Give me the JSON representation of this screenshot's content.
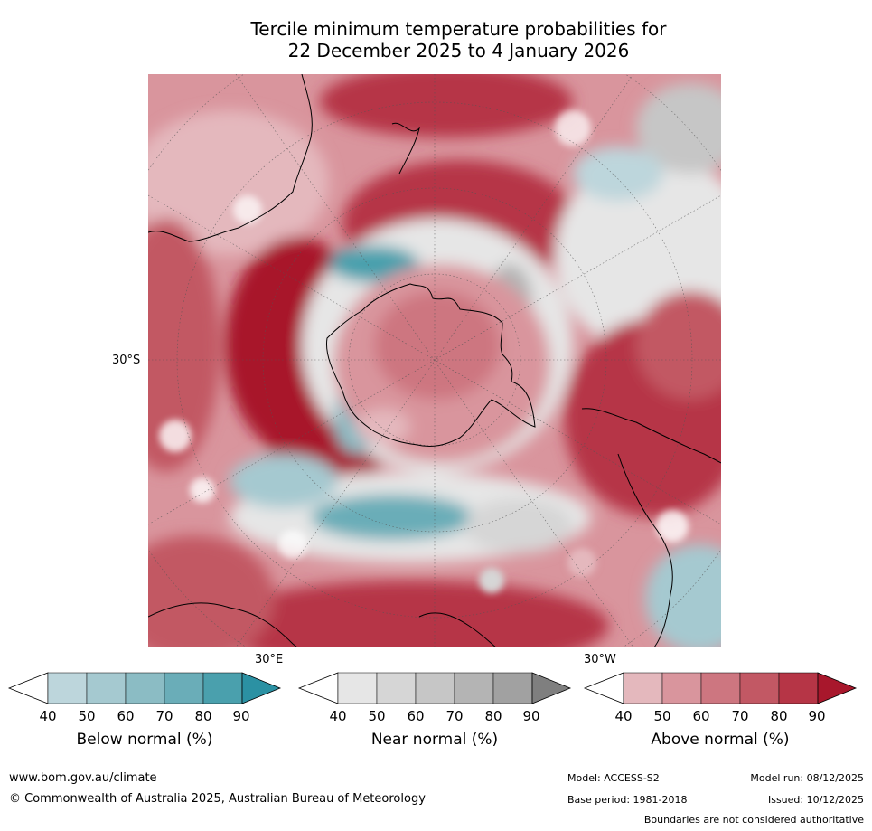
{
  "title": {
    "line1": "Tercile minimum temperature probabilities for",
    "line2": "22 December 2025 to 4 January 2026"
  },
  "map": {
    "lat_label": "30°S",
    "lon_label_east": "30°E",
    "lon_label_west": "30°W"
  },
  "legends": [
    {
      "title": "Below normal (%)",
      "ticks": [
        "40",
        "50",
        "60",
        "70",
        "80",
        "90"
      ],
      "colors": [
        "#ffffff",
        "#bdd6dc",
        "#a5c9d0",
        "#8bbcc4",
        "#6aadb8",
        "#4aa0ad",
        "#2b91a3"
      ]
    },
    {
      "title": "Near normal (%)",
      "ticks": [
        "40",
        "50",
        "60",
        "70",
        "80",
        "90"
      ],
      "colors": [
        "#ffffff",
        "#e6e6e6",
        "#d6d6d6",
        "#c6c6c6",
        "#b4b4b4",
        "#a1a1a1",
        "#7f7f7f"
      ]
    },
    {
      "title": "Above normal (%)",
      "ticks": [
        "40",
        "50",
        "60",
        "70",
        "80",
        "90"
      ],
      "colors": [
        "#ffffff",
        "#e4b8bd",
        "#d9959d",
        "#cd7680",
        "#c25864",
        "#b63546",
        "#a8172c"
      ]
    }
  ],
  "footer": {
    "website": "www.bom.gov.au/climate",
    "copyright": "© Commonwealth of Australia 2025, Australian Bureau of Meteorology",
    "model": "Model: ACCESS-S2",
    "model_run": "Model run: 08/12/2025",
    "base_period": "Base period: 1981-2018",
    "issued": "Issued: 10/12/2025",
    "disclaimer": "Boundaries are not considered authoritative"
  }
}
